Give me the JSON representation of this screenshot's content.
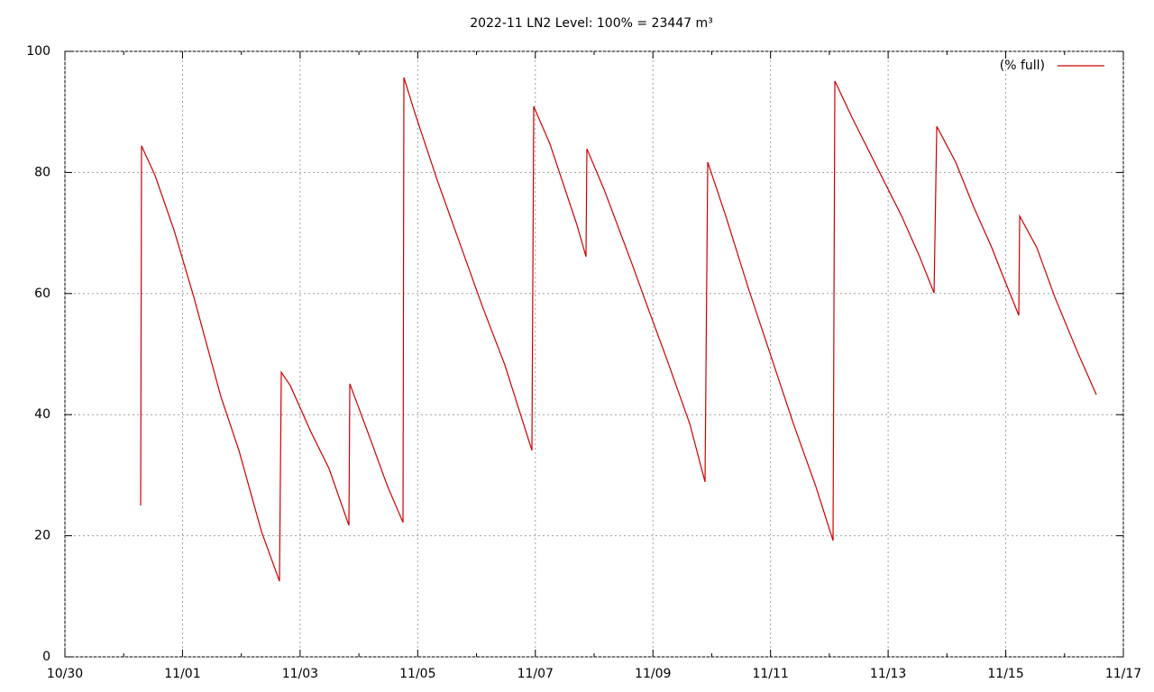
{
  "chart_data": {
    "type": "line",
    "title": "2022-11 LN2 Level: 100% = 23447 m³",
    "xlim": [
      0,
      18
    ],
    "xticks": [
      {
        "value": 0,
        "label": "10/30"
      },
      {
        "value": 2,
        "label": "11/01"
      },
      {
        "value": 4,
        "label": "11/03"
      },
      {
        "value": 6,
        "label": "11/05"
      },
      {
        "value": 8,
        "label": "11/07"
      },
      {
        "value": 10,
        "label": "11/09"
      },
      {
        "value": 12,
        "label": "11/11"
      },
      {
        "value": 14,
        "label": "11/13"
      },
      {
        "value": 16,
        "label": "11/15"
      },
      {
        "value": 18,
        "label": "11/17"
      }
    ],
    "xminorticks": [
      1,
      3,
      5,
      7,
      9,
      11,
      13,
      15,
      17
    ],
    "ylim": [
      0,
      100
    ],
    "yticks": [
      0,
      20,
      40,
      60,
      80,
      100
    ],
    "grid": true,
    "legend": "top-right",
    "series": [
      {
        "name": "(% full)",
        "color": "#cc0000",
        "x": [
          1.288,
          1.303,
          1.533,
          1.855,
          2.193,
          2.652,
          2.959,
          3.343,
          3.649,
          3.68,
          3.833,
          4.186,
          4.492,
          4.83,
          4.845,
          5.182,
          5.489,
          5.75,
          5.765,
          5.949,
          6.333,
          6.716,
          7.099,
          7.482,
          7.942,
          7.973,
          8.249,
          8.709,
          8.862,
          8.877,
          9.169,
          9.629,
          9.935,
          10.242,
          10.626,
          10.886,
          10.932,
          11.239,
          11.622,
          12.006,
          12.389,
          12.772,
          13.063,
          13.094,
          13.385,
          13.845,
          14.229,
          14.535,
          14.781,
          14.827,
          15.149,
          15.455,
          15.762,
          15.915,
          16.222,
          16.237,
          16.528,
          16.835,
          17.218,
          17.54
        ],
        "values": [
          25.0,
          84.4,
          79.5,
          70.5,
          59.4,
          43.0,
          34.1,
          20.7,
          12.5,
          47.0,
          44.8,
          37.1,
          31.1,
          21.7,
          45.1,
          36.3,
          28.1,
          22.2,
          95.7,
          89.9,
          78.7,
          68.3,
          57.9,
          48.2,
          34.1,
          90.9,
          84.7,
          71.3,
          66.1,
          83.9,
          77.2,
          65.3,
          57.1,
          49.0,
          38.5,
          28.9,
          81.7,
          72.8,
          60.9,
          49.7,
          38.5,
          28.1,
          19.2,
          95.1,
          89.1,
          80.2,
          72.8,
          66.1,
          60.1,
          87.6,
          81.7,
          74.3,
          67.6,
          63.8,
          56.4,
          72.8,
          67.6,
          59.4,
          50.4,
          43.3
        ]
      }
    ]
  }
}
